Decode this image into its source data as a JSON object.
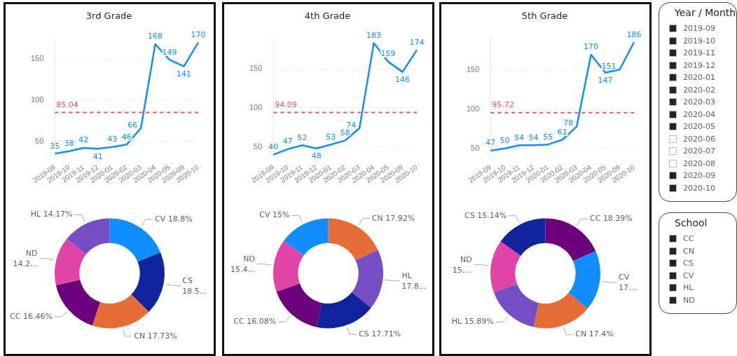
{
  "chart_data": [
    {
      "type": "line",
      "title": "3rd Grade",
      "categories": [
        "2019-09",
        "2019-10",
        "2019-11",
        "2019-12",
        "2020-01",
        "2020-02",
        "2020-03",
        "2020-04",
        "2020-05",
        "2020-09",
        "2020-10"
      ],
      "series": [
        {
          "color": "#118dff",
          "values": [
            35,
            38,
            42,
            41,
            43,
            46,
            66,
            168,
            149,
            141,
            170
          ]
        }
      ],
      "ylim": [
        30,
        176
      ],
      "yticks": [
        50,
        100,
        150
      ],
      "grid": "y",
      "legend": false,
      "marker": "none",
      "data_labels": true,
      "ref_lines": [
        {
          "axis": "y",
          "value": 85.04,
          "label": "85.04",
          "color": "#e0535f",
          "line_style": "dashed"
        }
      ]
    },
    {
      "type": "donut",
      "categories": [
        "CV",
        "CS",
        "CN",
        "CC",
        "ND",
        "HL"
      ],
      "values": [
        18.8,
        18.55,
        17.73,
        16.46,
        14.29,
        14.17
      ],
      "value_labels": [
        "18.8%",
        "18.5...",
        "17.73%",
        "16.46%",
        "14.2...",
        "14.17%"
      ],
      "colors": [
        "#118dff",
        "#12239e",
        "#e66c37",
        "#6b007b",
        "#e044a7",
        "#744ec2"
      ],
      "legend": false
    },
    {
      "type": "line",
      "title": "4th Grade",
      "categories": [
        "2019-09",
        "2019-10",
        "2019-11",
        "2019-12",
        "2020-01",
        "2020-02",
        "2020-03",
        "2020-04",
        "2020-05",
        "2020-09",
        "2020-10"
      ],
      "series": [
        {
          "color": "#118dff",
          "values": [
            40,
            47,
            52,
            48,
            53,
            58,
            74,
            183,
            159,
            146,
            174
          ]
        }
      ],
      "ylim": [
        36,
        190
      ],
      "yticks": [
        50,
        100,
        150
      ],
      "grid": "y",
      "legend": false,
      "marker": "none",
      "data_labels": true,
      "ref_lines": [
        {
          "axis": "y",
          "value": 94.09,
          "label": "94.09",
          "color": "#e0535f",
          "line_style": "dashed"
        }
      ]
    },
    {
      "type": "donut",
      "categories": [
        "CN",
        "HL",
        "CS",
        "CC",
        "ND",
        "CV"
      ],
      "values": [
        17.92,
        17.85,
        17.71,
        16.08,
        15.44,
        15
      ],
      "value_labels": [
        "17.92%",
        "17.8...",
        "17.71%",
        "16.08%",
        "15.4...",
        "15%"
      ],
      "colors": [
        "#e66c37",
        "#744ec2",
        "#12239e",
        "#6b007b",
        "#e044a7",
        "#118dff"
      ],
      "legend": false
    },
    {
      "type": "line",
      "title": "5th Grade",
      "categories": [
        "2019-09",
        "2019-10",
        "2019-11",
        "2019-12",
        "2020-01",
        "2020-02",
        "2020-03",
        "2020-04",
        "2020-05",
        "2020-09",
        "2020-10"
      ],
      "series": [
        {
          "color": "#118dff",
          "values": [
            47,
            50,
            54,
            54,
            55,
            61,
            78,
            170,
            147,
            151,
            186
          ]
        }
      ],
      "ylim": [
        38,
        192
      ],
      "yticks": [
        50,
        100,
        150
      ],
      "grid": "y",
      "legend": false,
      "marker": "none",
      "data_labels": true,
      "ref_lines": [
        {
          "axis": "y",
          "value": 95.72,
          "label": "95.72",
          "color": "#e0535f",
          "line_style": "dashed"
        }
      ]
    },
    {
      "type": "donut",
      "categories": [
        "CC",
        "CV",
        "CN",
        "HL",
        "ND",
        "CS"
      ],
      "values": [
        18.39,
        17.7,
        17.4,
        15.89,
        15.48,
        15.14
      ],
      "value_labels": [
        "18.39%",
        "17....",
        "17.4%",
        "15.89%",
        "15....",
        "15.14%"
      ],
      "colors": [
        "#6b007b",
        "#118dff",
        "#e66c37",
        "#744ec2",
        "#e044a7",
        "#12239e"
      ],
      "legend": false
    },
    {
      "type": "other",
      "title": "Year / Month",
      "categories": [
        "2019-09",
        "2019-10",
        "2019-11",
        "2019-12",
        "2020-01",
        "2020-02",
        "2020-03",
        "2020-04",
        "2020-05",
        "2020-06",
        "2020-07",
        "2020-08",
        "2020-09",
        "2020-10"
      ],
      "colors": [
        "#252423",
        "#252423",
        "#252423",
        "#252423",
        "#252423",
        "#252423",
        "#252423",
        "#252423",
        "#252423",
        "#ffffff",
        "#ffffff",
        "#ffffff",
        "#252423",
        "#252423"
      ]
    },
    {
      "type": "other",
      "title": "School",
      "categories": [
        "CC",
        "CN",
        "CS",
        "CV",
        "HL",
        "ND"
      ],
      "colors": [
        "#252423",
        "#252423",
        "#252423",
        "#252423",
        "#252423",
        "#252423"
      ]
    }
  ]
}
